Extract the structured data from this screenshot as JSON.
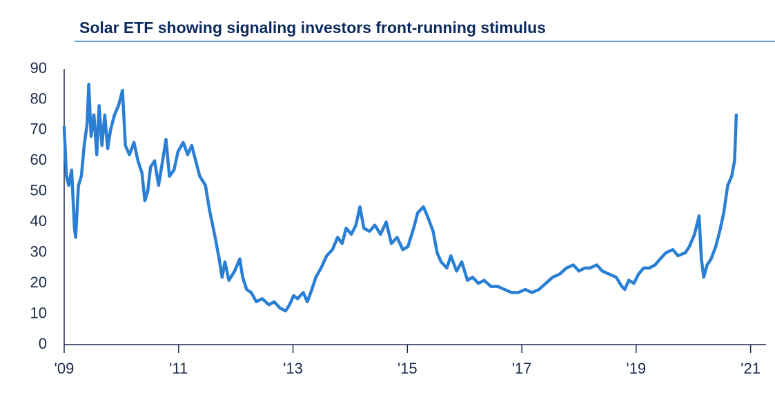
{
  "chart_data": {
    "type": "line",
    "title": "Solar ETF showing signaling investors front-running stimulus",
    "xlim": [
      2009,
      2021.27
    ],
    "ylim": [
      0,
      90
    ],
    "xticks": [
      {
        "value": 2009,
        "label": "'09"
      },
      {
        "value": 2011,
        "label": "'11"
      },
      {
        "value": 2013,
        "label": "'13"
      },
      {
        "value": 2015,
        "label": "'15"
      },
      {
        "value": 2017,
        "label": "'17"
      },
      {
        "value": 2019,
        "label": "'19"
      },
      {
        "value": 2021,
        "label": "'21"
      }
    ],
    "yticks": [
      0,
      10,
      20,
      30,
      40,
      50,
      60,
      70,
      80,
      90
    ],
    "x": [
      2009.0,
      2009.04,
      2009.08,
      2009.13,
      2009.18,
      2009.2,
      2009.25,
      2009.3,
      2009.35,
      2009.4,
      2009.43,
      2009.47,
      2009.52,
      2009.57,
      2009.61,
      2009.66,
      2009.71,
      2009.76,
      2009.81,
      2009.88,
      2009.95,
      2010.02,
      2010.07,
      2010.14,
      2010.22,
      2010.29,
      2010.36,
      2010.41,
      2010.46,
      2010.51,
      2010.58,
      2010.65,
      2010.72,
      2010.78,
      2010.84,
      2010.92,
      2010.99,
      2011.08,
      2011.16,
      2011.23,
      2011.3,
      2011.37,
      2011.47,
      2011.54,
      2011.64,
      2011.71,
      2011.76,
      2011.81,
      2011.88,
      2011.98,
      2012.07,
      2012.12,
      2012.19,
      2012.27,
      2012.36,
      2012.46,
      2012.58,
      2012.67,
      2012.77,
      2012.87,
      2012.94,
      2013.01,
      2013.08,
      2013.18,
      2013.25,
      2013.33,
      2013.4,
      2013.49,
      2013.59,
      2013.69,
      2013.78,
      2013.86,
      2013.93,
      2014.02,
      2014.1,
      2014.17,
      2014.24,
      2014.34,
      2014.43,
      2014.53,
      2014.63,
      2014.72,
      2014.82,
      2014.92,
      2015.01,
      2015.11,
      2015.18,
      2015.28,
      2015.35,
      2015.45,
      2015.52,
      2015.59,
      2015.69,
      2015.76,
      2015.86,
      2015.95,
      2016.05,
      2016.14,
      2016.24,
      2016.34,
      2016.46,
      2016.58,
      2016.7,
      2016.82,
      2016.94,
      2017.06,
      2017.18,
      2017.3,
      2017.42,
      2017.54,
      2017.66,
      2017.78,
      2017.9,
      2018.0,
      2018.1,
      2018.19,
      2018.31,
      2018.41,
      2018.53,
      2018.65,
      2018.75,
      2018.8,
      2018.87,
      2018.96,
      2019.04,
      2019.13,
      2019.23,
      2019.33,
      2019.42,
      2019.52,
      2019.64,
      2019.73,
      2019.86,
      2019.93,
      2020.02,
      2020.1,
      2020.14,
      2020.18,
      2020.24,
      2020.31,
      2020.39,
      2020.46,
      2020.53,
      2020.6,
      2020.67,
      2020.72,
      2020.75
    ],
    "series": [
      {
        "name": "Solar ETF",
        "color": "#2a7fd4",
        "values": [
          71,
          55,
          52,
          57,
          38,
          35,
          52,
          55,
          65,
          72,
          85,
          68,
          75,
          62,
          78,
          65,
          75,
          64,
          70,
          75,
          78,
          83,
          65,
          62,
          66,
          60,
          56,
          47,
          50,
          58,
          60,
          52,
          60,
          67,
          55,
          57,
          63,
          66,
          62,
          65,
          60,
          55,
          52,
          44,
          35,
          28,
          22,
          27,
          21,
          24,
          28,
          22,
          18,
          17,
          14,
          15,
          13,
          14,
          12,
          11,
          13,
          16,
          15,
          17,
          14,
          18,
          22,
          25,
          29,
          31,
          35,
          33,
          38,
          36,
          39,
          45,
          38,
          37,
          39,
          36,
          40,
          33,
          35,
          31,
          32,
          38,
          43,
          45,
          42,
          37,
          30,
          27,
          25,
          29,
          24,
          27,
          21,
          22,
          20,
          21,
          19,
          19,
          18,
          17,
          17,
          18,
          17,
          18,
          20,
          22,
          23,
          25,
          26,
          24,
          25,
          25,
          26,
          24,
          23,
          22,
          19,
          18,
          21,
          20,
          23,
          25,
          25,
          26,
          28,
          30,
          31,
          29,
          30,
          32,
          36,
          42,
          28,
          22,
          26,
          28,
          32,
          37,
          43,
          52,
          55,
          60,
          75
        ]
      }
    ]
  }
}
